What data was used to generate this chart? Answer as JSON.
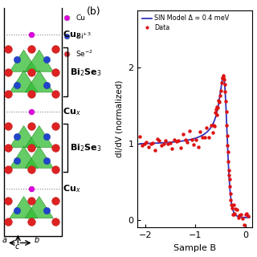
{
  "legend_model": "SIN Model Δ = 0.4 meV",
  "legend_data": "Data",
  "xlabel": "Sample B",
  "ylabel": "dI/dV (normalized)",
  "xlim": [
    -2.15,
    0.12
  ],
  "ylim": [
    -0.1,
    2.75
  ],
  "yticks": [
    0,
    1,
    2
  ],
  "xticks": [
    -2,
    -1,
    0
  ],
  "model_color": "#3333bb",
  "data_color": "#dd1111",
  "background_color": "#ffffff",
  "panel_b_label": "(b)"
}
